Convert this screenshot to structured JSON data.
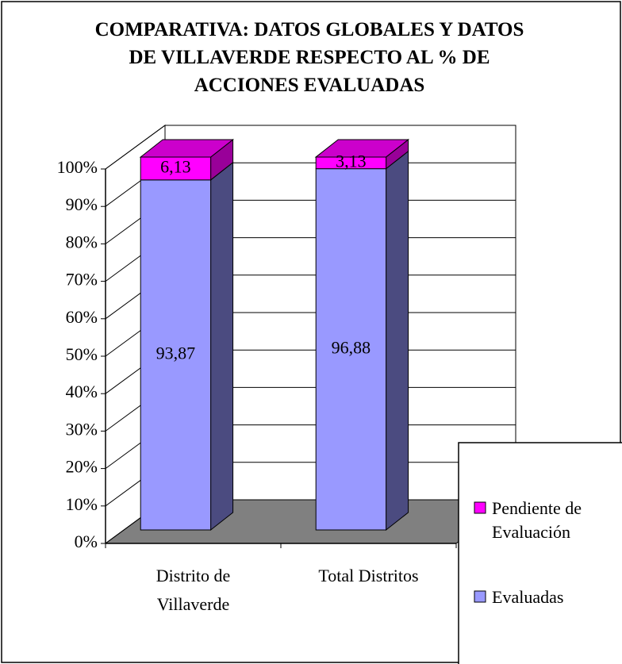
{
  "chart_data": {
    "type": "bar3d_stacked",
    "title": "COMPARATIVA: DATOS GLOBALES Y DATOS DE VILLAVERDE RESPECTO AL % DE ACCIONES EVALUADAS",
    "categories": [
      "Distrito de Villaverde",
      "Total Distritos"
    ],
    "series": [
      {
        "name": "Evaluadas",
        "color": "#9999ff",
        "side_color": "#4b4b80",
        "values": [
          93.87,
          96.88
        ],
        "value_labels": [
          "93,87",
          "96,88"
        ]
      },
      {
        "name": "Pendiente de Evaluación",
        "color": "#ff00ff",
        "side_color": "#990099",
        "values": [
          6.13,
          3.13
        ],
        "value_labels": [
          "6,13",
          "3,13"
        ]
      }
    ],
    "ylim": [
      0,
      100
    ],
    "yticks": [
      {
        "value": 0,
        "label": "0%"
      },
      {
        "value": 10,
        "label": "10%"
      },
      {
        "value": 20,
        "label": "20%"
      },
      {
        "value": 30,
        "label": "30%"
      },
      {
        "value": 40,
        "label": "40%"
      },
      {
        "value": 50,
        "label": "50%"
      },
      {
        "value": 60,
        "label": "60%"
      },
      {
        "value": 70,
        "label": "70%"
      },
      {
        "value": 80,
        "label": "80%"
      },
      {
        "value": 90,
        "label": "90%"
      },
      {
        "value": 100,
        "label": "100%"
      }
    ],
    "grid": true,
    "legend": "right"
  }
}
